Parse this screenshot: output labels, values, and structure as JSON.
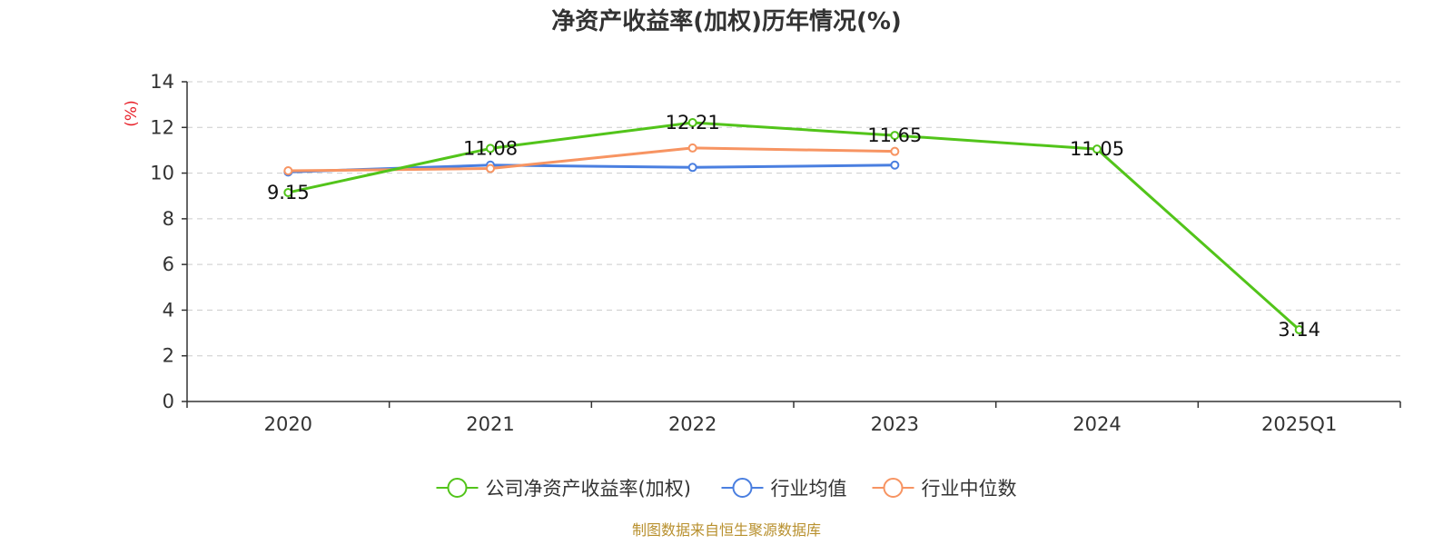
{
  "chart_data": {
    "type": "line",
    "title": "净资产收益率(加权)历年情况(%)",
    "ylabel": "(%)",
    "xlabel": "",
    "categories": [
      "2020",
      "2021",
      "2022",
      "2023",
      "2024",
      "2025Q1"
    ],
    "ylim": [
      0,
      14
    ],
    "yticks": [
      0,
      2,
      4,
      6,
      8,
      10,
      12,
      14
    ],
    "grid": true,
    "legend_position": "bottom-center",
    "series": [
      {
        "name": "公司净资产收益率(加权)",
        "values": [
          9.15,
          11.08,
          12.21,
          11.65,
          11.05,
          3.14
        ],
        "labels": [
          "9.15",
          "11.08",
          "12.21",
          "11.65",
          "11.05",
          "3.14"
        ],
        "color": "#52c41a"
      },
      {
        "name": "行业均值",
        "values": [
          10.05,
          10.35,
          10.25,
          10.35,
          null,
          null
        ],
        "color": "#4a7fe0"
      },
      {
        "name": "行业中位数",
        "values": [
          10.1,
          10.2,
          11.1,
          10.95,
          null,
          null
        ],
        "color": "#f79462"
      }
    ]
  },
  "colors": {
    "unit_label": "#e8212a",
    "source": "#b8902e",
    "axis": "#333333",
    "grid": "#cccccc"
  },
  "source": "制图数据来自恒生聚源数据库"
}
